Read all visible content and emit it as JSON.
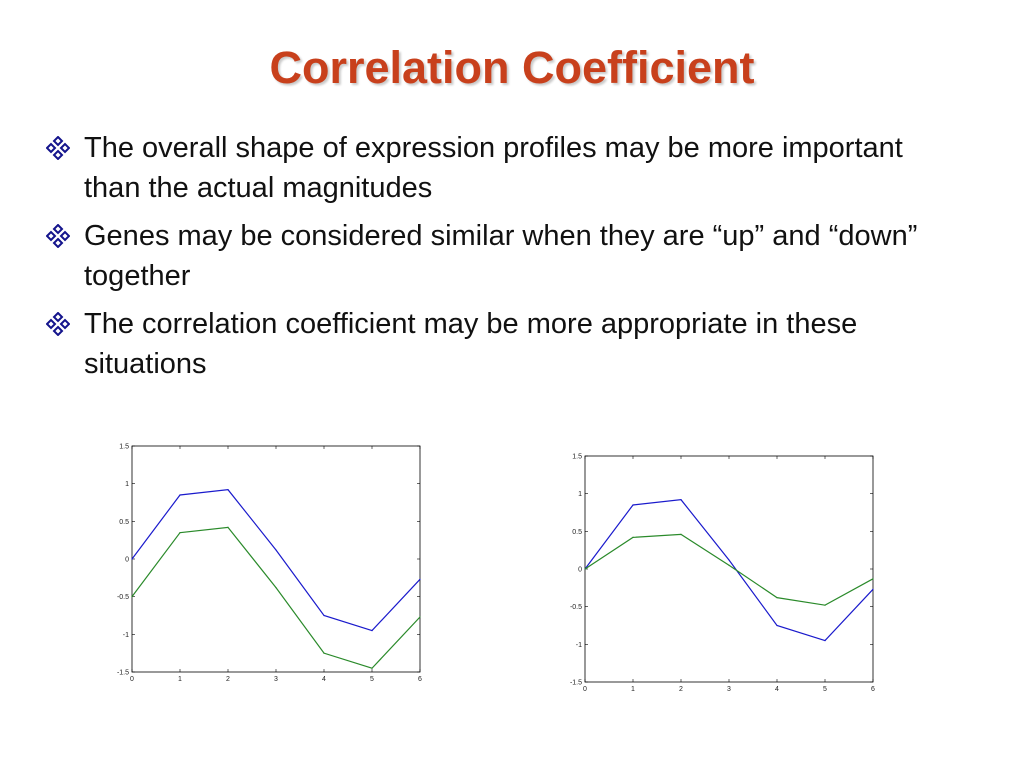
{
  "slide": {
    "title": "Correlation Coefficient",
    "bullets": [
      "The overall shape of expression profiles may be more important than the actual magnitudes",
      "Genes may be considered similar when they are  “up” and “down” together",
      "The correlation coefficient may be more appropriate in these situations"
    ],
    "bullet_icon": "four-diamond-icon",
    "colors": {
      "title": "#c8401c",
      "bullet_icon": "#14148c"
    }
  },
  "chart_data": [
    {
      "type": "line",
      "title": "",
      "xlabel": "",
      "ylabel": "",
      "xlim": [
        0,
        6
      ],
      "ylim": [
        -1.5,
        1.5
      ],
      "x_ticks": [
        "0",
        "1",
        "2",
        "3",
        "4",
        "5",
        "6"
      ],
      "y_ticks": [
        "1.5",
        "1",
        "0.5",
        "0",
        "-0.5",
        "-1",
        "-1.5"
      ],
      "grid": false,
      "x": [
        0,
        1,
        2,
        3,
        4,
        5,
        6
      ],
      "series": [
        {
          "name": "blue",
          "color": "#1a1acc",
          "values": [
            0.0,
            0.85,
            0.92,
            0.12,
            -0.75,
            -0.95,
            -0.27
          ]
        },
        {
          "name": "green",
          "color": "#2a8a2a",
          "values": [
            -0.5,
            0.35,
            0.42,
            -0.38,
            -1.25,
            -1.45,
            -0.77
          ]
        }
      ]
    },
    {
      "type": "line",
      "title": "",
      "xlabel": "",
      "ylabel": "",
      "xlim": [
        0,
        6
      ],
      "ylim": [
        -1.5,
        1.5
      ],
      "x_ticks": [
        "0",
        "1",
        "2",
        "3",
        "4",
        "5",
        "6"
      ],
      "y_ticks": [
        "1.5",
        "1",
        "0.5",
        "0",
        "-0.5",
        "-1",
        "-1.5"
      ],
      "grid": false,
      "x": [
        0,
        1,
        2,
        3,
        4,
        5,
        6
      ],
      "series": [
        {
          "name": "blue",
          "color": "#1a1acc",
          "values": [
            0.0,
            0.85,
            0.92,
            0.12,
            -0.75,
            -0.95,
            -0.27
          ]
        },
        {
          "name": "green",
          "color": "#2a8a2a",
          "values": [
            0.0,
            0.42,
            0.46,
            0.05,
            -0.38,
            -0.48,
            -0.13
          ]
        }
      ]
    }
  ]
}
